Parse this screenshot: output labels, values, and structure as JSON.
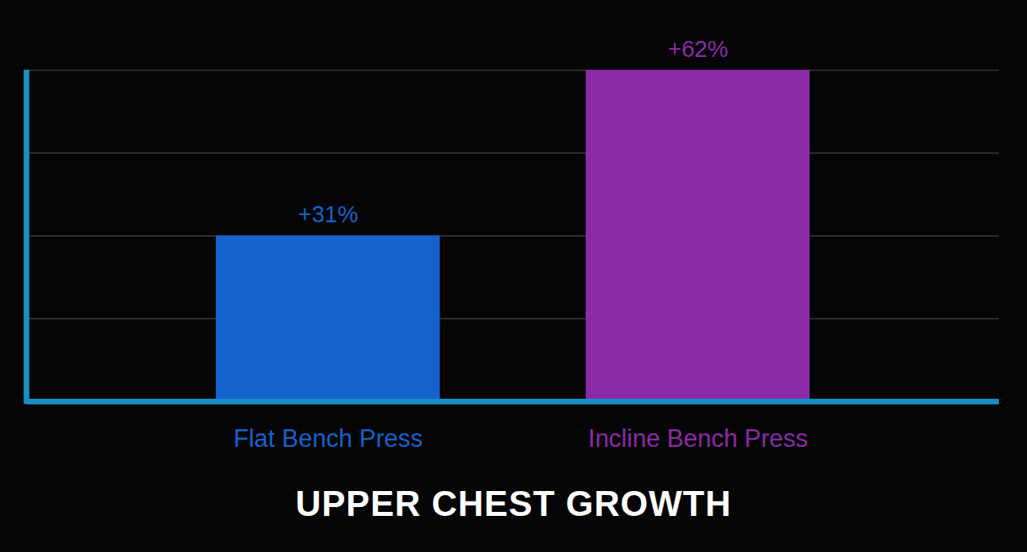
{
  "chart_data": {
    "type": "bar",
    "title": "UPPER CHEST GROWTH",
    "categories": [
      "Flat Bench Press",
      "Incline Bench Press"
    ],
    "values": [
      31,
      62
    ],
    "value_labels": [
      "+31%",
      "+62%"
    ],
    "colors": [
      "#1462cc",
      "#8c2aa8"
    ],
    "ylim": [
      0,
      62
    ],
    "yticks": [
      0,
      15.5,
      31,
      46.5,
      62
    ],
    "grid": true,
    "data_labels": true,
    "tick_labels": "x"
  }
}
